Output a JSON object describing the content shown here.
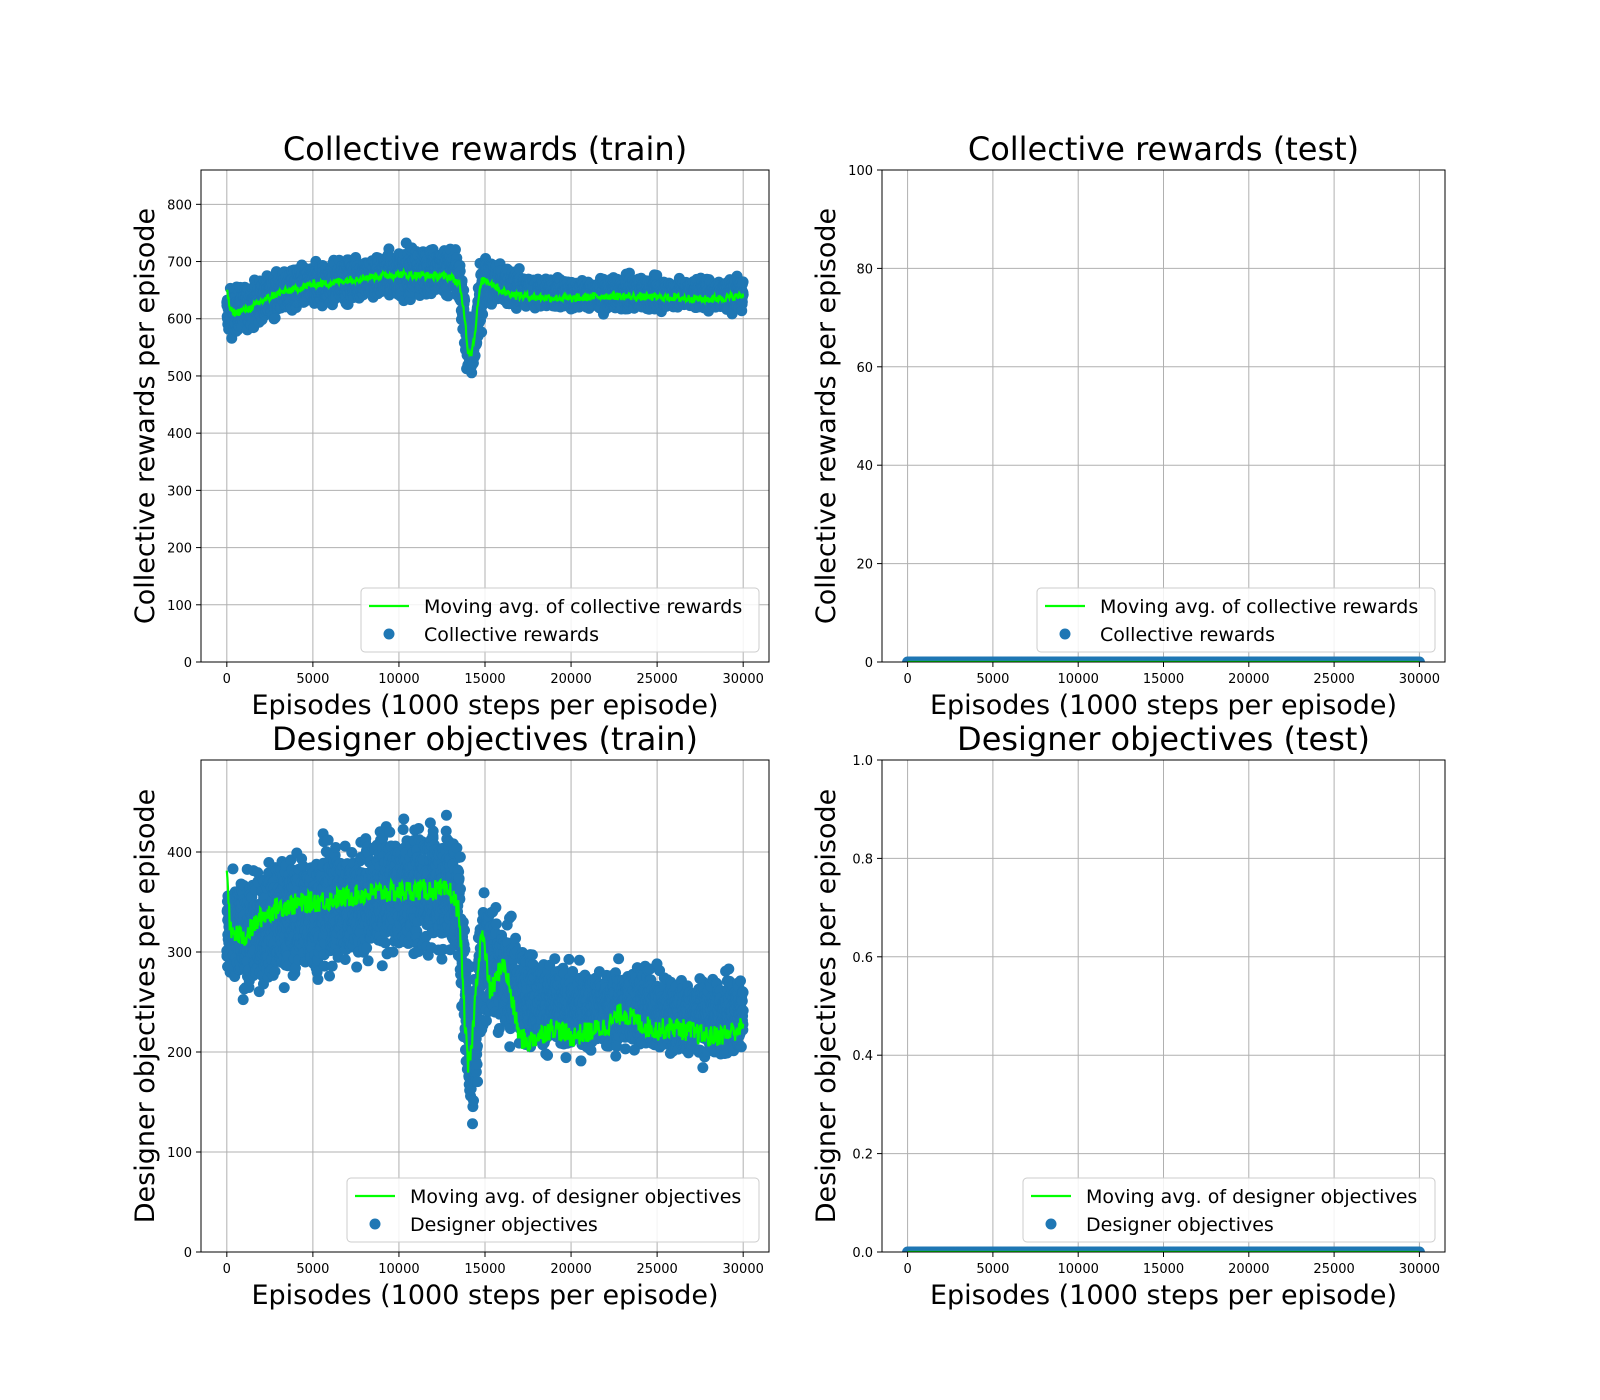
{
  "chart_data": [
    {
      "type": "scatter",
      "title": "Collective rewards (train)",
      "xlabel": "Episodes (1000 steps per episode)",
      "ylabel": "Collective rewards per episode",
      "xlim": [
        -1500,
        31500
      ],
      "ylim": [
        0,
        860
      ],
      "xticks": [
        0,
        5000,
        10000,
        15000,
        20000,
        25000,
        30000
      ],
      "yticks": [
        0,
        100,
        200,
        300,
        400,
        500,
        600,
        700,
        800
      ],
      "grid": true,
      "legend": "lower-right",
      "series": [
        {
          "name": "Moving avg. of collective rewards",
          "kind": "line",
          "color": "#00ff00",
          "x": [
            0,
            200,
            500,
            1000,
            1500,
            2000,
            3000,
            4000,
            5000,
            6000,
            7000,
            8000,
            9000,
            10000,
            11000,
            12000,
            13000,
            13500,
            13800,
            14000,
            14200,
            14400,
            14600,
            14800,
            15000,
            15500,
            16000,
            17000,
            18000,
            20000,
            22000,
            24000,
            26000,
            28000,
            30000
          ],
          "y": [
            650,
            615,
            610,
            615,
            620,
            630,
            645,
            652,
            660,
            662,
            668,
            672,
            675,
            678,
            676,
            675,
            673,
            660,
            610,
            545,
            540,
            570,
            630,
            665,
            668,
            660,
            648,
            640,
            638,
            635,
            640,
            638,
            637,
            634,
            640
          ]
        },
        {
          "name": "Collective rewards",
          "kind": "scatter",
          "color": "#1f77b4",
          "x": [
            0,
            1000,
            2000,
            3000,
            4000,
            5000,
            6000,
            7000,
            8000,
            9000,
            10000,
            11000,
            12000,
            13000,
            13500,
            14000,
            14300,
            14600,
            15000,
            16000,
            17000,
            18000,
            19000,
            20000,
            22000,
            24000,
            26000,
            28000,
            30000
          ],
          "y_low": [
            550,
            565,
            580,
            590,
            595,
            605,
            608,
            612,
            615,
            615,
            620,
            620,
            625,
            625,
            600,
            480,
            470,
            520,
            605,
            605,
            608,
            605,
            605,
            605,
            605,
            605,
            605,
            605,
            600
          ],
          "y_high": [
            670,
            675,
            685,
            695,
            705,
            712,
            718,
            722,
            728,
            732,
            738,
            740,
            742,
            745,
            730,
            620,
            600,
            700,
            730,
            712,
            695,
            685,
            680,
            678,
            680,
            685,
            682,
            680,
            690
          ]
        }
      ]
    },
    {
      "type": "scatter",
      "title": "Collective rewards (test)",
      "xlabel": "Episodes (1000 steps per episode)",
      "ylabel": "Collective rewards per episode",
      "xlim": [
        -1500,
        31500
      ],
      "ylim": [
        0,
        100
      ],
      "xticks": [
        0,
        5000,
        10000,
        15000,
        20000,
        25000,
        30000
      ],
      "yticks": [
        0,
        20,
        40,
        60,
        80,
        100
      ],
      "grid": true,
      "legend": "lower-right",
      "series": [
        {
          "name": "Moving avg. of collective rewards",
          "kind": "line",
          "color": "#00ff00",
          "x": [
            0,
            30000
          ],
          "y": [
            0,
            0
          ]
        },
        {
          "name": "Collective rewards",
          "kind": "scatter",
          "color": "#1f77b4",
          "x": [
            0,
            30000
          ],
          "y_low": [
            0,
            0
          ],
          "y_high": [
            0,
            0
          ]
        }
      ]
    },
    {
      "type": "scatter",
      "title": "Designer objectives (train)",
      "xlabel": "Episodes (1000 steps per episode)",
      "ylabel": "Designer objectives per episode",
      "xlim": [
        -1500,
        31500
      ],
      "ylim": [
        0,
        492
      ],
      "xticks": [
        0,
        5000,
        10000,
        15000,
        20000,
        25000,
        30000
      ],
      "yticks": [
        0,
        100,
        200,
        300,
        400
      ],
      "grid": true,
      "legend": "lower-right",
      "series": [
        {
          "name": "Moving avg. of designer objectives",
          "kind": "line",
          "color": "#00ff00",
          "x": [
            0,
            200,
            500,
            1000,
            1500,
            2000,
            3000,
            4000,
            5000,
            6000,
            7000,
            8000,
            9000,
            10000,
            11000,
            12000,
            13000,
            13500,
            13800,
            14000,
            14200,
            14500,
            14800,
            15000,
            15300,
            15600,
            16000,
            16300,
            16700,
            17000,
            17500,
            18000,
            19000,
            20000,
            21000,
            22000,
            23000,
            24000,
            25000,
            26000,
            27000,
            28000,
            29000,
            30000
          ],
          "y": [
            385,
            320,
            318,
            315,
            325,
            335,
            345,
            348,
            350,
            352,
            355,
            358,
            360,
            360,
            362,
            362,
            360,
            340,
            240,
            185,
            200,
            270,
            320,
            300,
            260,
            270,
            290,
            275,
            240,
            215,
            210,
            215,
            225,
            215,
            220,
            225,
            240,
            228,
            222,
            225,
            220,
            215,
            218,
            225
          ]
        },
        {
          "name": "Designer objectives",
          "kind": "scatter",
          "color": "#1f77b4",
          "x": [
            0,
            1000,
            2000,
            3000,
            4000,
            5000,
            6000,
            7000,
            8000,
            9000,
            10000,
            11000,
            12000,
            13000,
            13500,
            14000,
            14300,
            14700,
            15000,
            15500,
            16000,
            16500,
            17000,
            18000,
            19000,
            20000,
            22000,
            24000,
            26000,
            28000,
            30000
          ],
          "y_low": [
            240,
            235,
            240,
            245,
            250,
            255,
            260,
            260,
            265,
            268,
            270,
            270,
            272,
            270,
            250,
            120,
            95,
            150,
            210,
            200,
            190,
            185,
            185,
            180,
            180,
            180,
            182,
            180,
            180,
            180,
            185
          ],
          "y_high": [
            395,
            400,
            410,
            420,
            425,
            430,
            435,
            438,
            442,
            445,
            448,
            452,
            455,
            460,
            440,
            330,
            300,
            380,
            400,
            380,
            370,
            360,
            330,
            320,
            310,
            300,
            300,
            310,
            290,
            285,
            290
          ]
        }
      ]
    },
    {
      "type": "scatter",
      "title": "Designer objectives (test)",
      "xlabel": "Episodes (1000 steps per episode)",
      "ylabel": "Designer objectives per episode",
      "xlim": [
        -1500,
        31500
      ],
      "ylim": [
        0,
        1.0
      ],
      "xticks": [
        0,
        5000,
        10000,
        15000,
        20000,
        25000,
        30000
      ],
      "yticks": [
        0.0,
        0.2,
        0.4,
        0.6,
        0.8,
        1.0
      ],
      "grid": true,
      "legend": "lower-right",
      "series": [
        {
          "name": "Moving avg. of designer objectives",
          "kind": "line",
          "color": "#00ff00",
          "x": [
            0,
            30000
          ],
          "y": [
            0,
            0
          ]
        },
        {
          "name": "Designer objectives",
          "kind": "scatter",
          "color": "#1f77b4",
          "x": [
            0,
            30000
          ],
          "y_low": [
            0,
            0
          ],
          "y_high": [
            0,
            0
          ]
        }
      ]
    }
  ]
}
